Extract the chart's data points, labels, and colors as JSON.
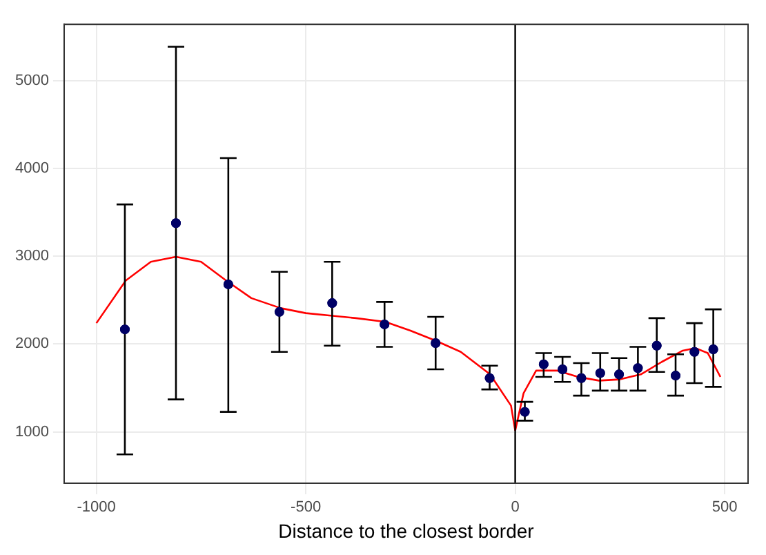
{
  "chart_data": {
    "type": "scatter",
    "xlabel": "Distance to the closest border",
    "xlim": [
      -1077,
      556
    ],
    "ylim": [
      416,
      5640
    ],
    "xticks": [
      -1000,
      -500,
      0,
      500
    ],
    "yticks": [
      1000,
      2000,
      3000,
      4000,
      5000
    ],
    "grid": true,
    "legend": false,
    "ref_lines": [
      {
        "axis": "x",
        "value": 0,
        "color": "#000000"
      }
    ],
    "series": [
      {
        "type": "scatter",
        "color": "#000066",
        "marker": "circle",
        "x": [
          -932,
          -810,
          -685,
          -563,
          -437,
          -312,
          -190,
          -61,
          23,
          68,
          113,
          158,
          203,
          248,
          293,
          338,
          383,
          428,
          473
        ],
        "values": [
          2167,
          3377,
          2680,
          2366,
          2466,
          2224,
          2011,
          1612,
          1228,
          1769,
          1712,
          1612,
          1669,
          1655,
          1726,
          1982,
          1641,
          1911,
          1940
        ],
        "errors": [
          [
            744,
            3590
          ],
          [
            1370,
            5384
          ],
          [
            1228,
            4117
          ],
          [
            1911,
            2822
          ],
          [
            1982,
            2936
          ],
          [
            1968,
            2480
          ],
          [
            1712,
            2310
          ],
          [
            1484,
            1754
          ],
          [
            1128,
            1342
          ],
          [
            1626,
            1897
          ],
          [
            1569,
            1854
          ],
          [
            1413,
            1783
          ],
          [
            1470,
            1897
          ],
          [
            1470,
            1840
          ],
          [
            1470,
            1968
          ],
          [
            1683,
            2295
          ],
          [
            1413,
            1883
          ],
          [
            1555,
            2238
          ],
          [
            1513,
            2395
          ]
        ]
      },
      {
        "type": "line",
        "color": "#ff0000",
        "marker": "none",
        "x": [
          -1000,
          -930,
          -870,
          -810,
          -750,
          -690,
          -630,
          -560,
          -500,
          -440,
          -380,
          -310,
          -250,
          -190,
          -130,
          -60,
          -10,
          0
        ],
        "values": [
          2238,
          2722,
          2936,
          2993,
          2936,
          2722,
          2523,
          2409,
          2352,
          2324,
          2295,
          2253,
          2153,
          2039,
          1911,
          1655,
          1299,
          1014
        ]
      },
      {
        "type": "line",
        "color": "#ff0000",
        "marker": "none",
        "x": [
          0,
          20,
          50,
          100,
          150,
          200,
          250,
          300,
          350,
          400,
          430,
          460,
          490
        ],
        "values": [
          1014,
          1441,
          1698,
          1698,
          1626,
          1584,
          1598,
          1655,
          1797,
          1925,
          1954,
          1897,
          1626
        ]
      }
    ]
  }
}
